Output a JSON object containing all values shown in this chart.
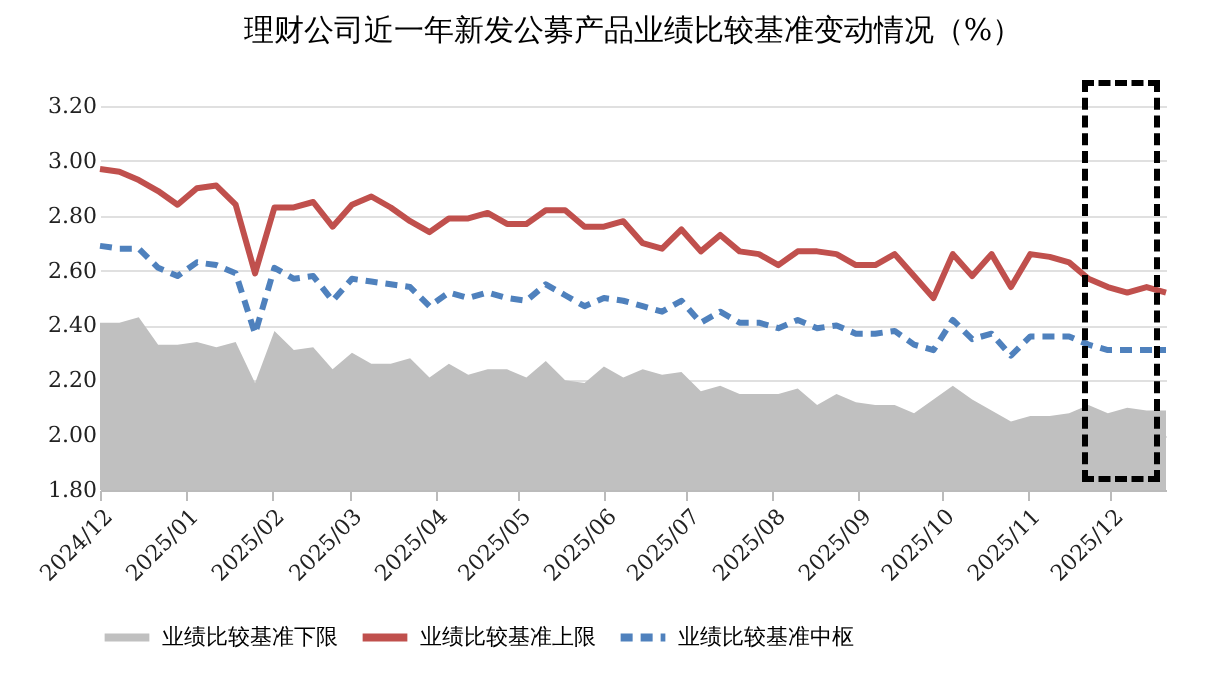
{
  "chart_data": {
    "type": "line",
    "title": "理财公司近一年新发公募产品业绩比较基准变动情况（%）",
    "x": [
      "2024-12-01",
      "2024-12-08",
      "2024-12-15",
      "2024-12-22",
      "2024-12-29",
      "2025-01-05",
      "2025-01-12",
      "2025-01-19",
      "2025-01-26",
      "2025-02-02",
      "2025-02-09",
      "2025-02-16",
      "2025-02-23",
      "2025-03-02",
      "2025-03-09",
      "2025-03-16",
      "2025-03-23",
      "2025-03-30",
      "2025-04-06",
      "2025-04-13",
      "2025-04-20",
      "2025-04-27",
      "2025-05-04",
      "2025-05-11",
      "2025-05-18",
      "2025-05-25",
      "2025-06-01",
      "2025-06-08",
      "2025-06-15",
      "2025-06-22",
      "2025-06-29",
      "2025-07-06",
      "2025-07-13",
      "2025-07-20",
      "2025-07-27",
      "2025-08-03",
      "2025-08-10",
      "2025-08-17",
      "2025-08-24",
      "2025-08-31",
      "2025-09-07",
      "2025-09-14",
      "2025-09-21",
      "2025-09-28",
      "2025-10-05",
      "2025-10-12",
      "2025-10-19",
      "2025-10-26",
      "2025-11-02",
      "2025-11-09",
      "2025-11-16",
      "2025-11-23",
      "2025-11-30",
      "2025-12-07",
      "2025-12-14",
      "2025-12-21"
    ],
    "xlim": [
      "2024-12-01",
      "2025-12-21"
    ],
    "xticks": [
      {
        "value": "2024-12",
        "label": "2024/12"
      },
      {
        "value": "2025-01",
        "label": "2025/01"
      },
      {
        "value": "2025-02",
        "label": "2025/02"
      },
      {
        "value": "2025-03",
        "label": "2025/03"
      },
      {
        "value": "2025-04",
        "label": "2025/04"
      },
      {
        "value": "2025-05",
        "label": "2025/05"
      },
      {
        "value": "2025-06",
        "label": "2025/06"
      },
      {
        "value": "2025-07",
        "label": "2025/07"
      },
      {
        "value": "2025-08",
        "label": "2025/08"
      },
      {
        "value": "2025-09",
        "label": "2025/09"
      },
      {
        "value": "2025-10",
        "label": "2025/10"
      },
      {
        "value": "2025-11",
        "label": "2025/11"
      },
      {
        "value": "2025-12",
        "label": "2025/12"
      }
    ],
    "series": [
      {
        "name": "业绩比较基准下限",
        "type": "area",
        "color": "#c0c0c0",
        "values": [
          2.41,
          2.41,
          2.43,
          2.33,
          2.33,
          2.34,
          2.32,
          2.34,
          2.19,
          2.38,
          2.31,
          2.32,
          2.24,
          2.3,
          2.26,
          2.26,
          2.28,
          2.21,
          2.26,
          2.22,
          2.24,
          2.24,
          2.21,
          2.27,
          2.2,
          2.19,
          2.25,
          2.21,
          2.24,
          2.22,
          2.23,
          2.16,
          2.18,
          2.15,
          2.15,
          2.15,
          2.17,
          2.11,
          2.15,
          2.12,
          2.11,
          2.11,
          2.08,
          2.13,
          2.18,
          2.13,
          2.09,
          2.05,
          2.07,
          2.07,
          2.08,
          2.11,
          2.08,
          2.1,
          2.09,
          2.09
        ]
      },
      {
        "name": "业绩比较基准上限",
        "type": "line",
        "line_style": "solid",
        "color": "#c0504d",
        "values": [
          2.97,
          2.96,
          2.93,
          2.89,
          2.84,
          2.9,
          2.91,
          2.84,
          2.59,
          2.83,
          2.83,
          2.85,
          2.76,
          2.84,
          2.87,
          2.83,
          2.78,
          2.74,
          2.79,
          2.79,
          2.81,
          2.77,
          2.77,
          2.82,
          2.82,
          2.76,
          2.76,
          2.78,
          2.7,
          2.68,
          2.75,
          2.67,
          2.73,
          2.67,
          2.66,
          2.62,
          2.67,
          2.67,
          2.66,
          2.62,
          2.62,
          2.66,
          2.58,
          2.5,
          2.66,
          2.58,
          2.66,
          2.54,
          2.66,
          2.65,
          2.63,
          2.57,
          2.54,
          2.52,
          2.54,
          2.52
        ]
      },
      {
        "name": "业绩比较基准中枢",
        "type": "line",
        "line_style": "dashed",
        "color": "#4f81bd",
        "values": [
          2.69,
          2.68,
          2.68,
          2.61,
          2.58,
          2.63,
          2.62,
          2.59,
          2.37,
          2.61,
          2.57,
          2.58,
          2.49,
          2.57,
          2.56,
          2.55,
          2.54,
          2.47,
          2.52,
          2.5,
          2.52,
          2.5,
          2.49,
          2.55,
          2.51,
          2.47,
          2.5,
          2.49,
          2.47,
          2.45,
          2.49,
          2.41,
          2.45,
          2.41,
          2.41,
          2.39,
          2.42,
          2.39,
          2.4,
          2.37,
          2.37,
          2.38,
          2.33,
          2.31,
          2.42,
          2.35,
          2.37,
          2.29,
          2.36,
          2.36,
          2.36,
          2.33,
          2.31,
          2.31,
          2.31,
          2.31
        ]
      }
    ],
    "ylim": [
      1.8,
      3.2
    ],
    "yticks": [
      {
        "value": 1.8,
        "label": "1.80"
      },
      {
        "value": 2.0,
        "label": "2.00"
      },
      {
        "value": 2.2,
        "label": "2.20"
      },
      {
        "value": 2.4,
        "label": "2.40"
      },
      {
        "value": 2.6,
        "label": "2.60"
      },
      {
        "value": 2.8,
        "label": "2.80"
      },
      {
        "value": 3.0,
        "label": "3.00"
      },
      {
        "value": 3.2,
        "label": "3.20"
      }
    ],
    "grid": "y",
    "legend": "bottom",
    "marker": "none"
  }
}
